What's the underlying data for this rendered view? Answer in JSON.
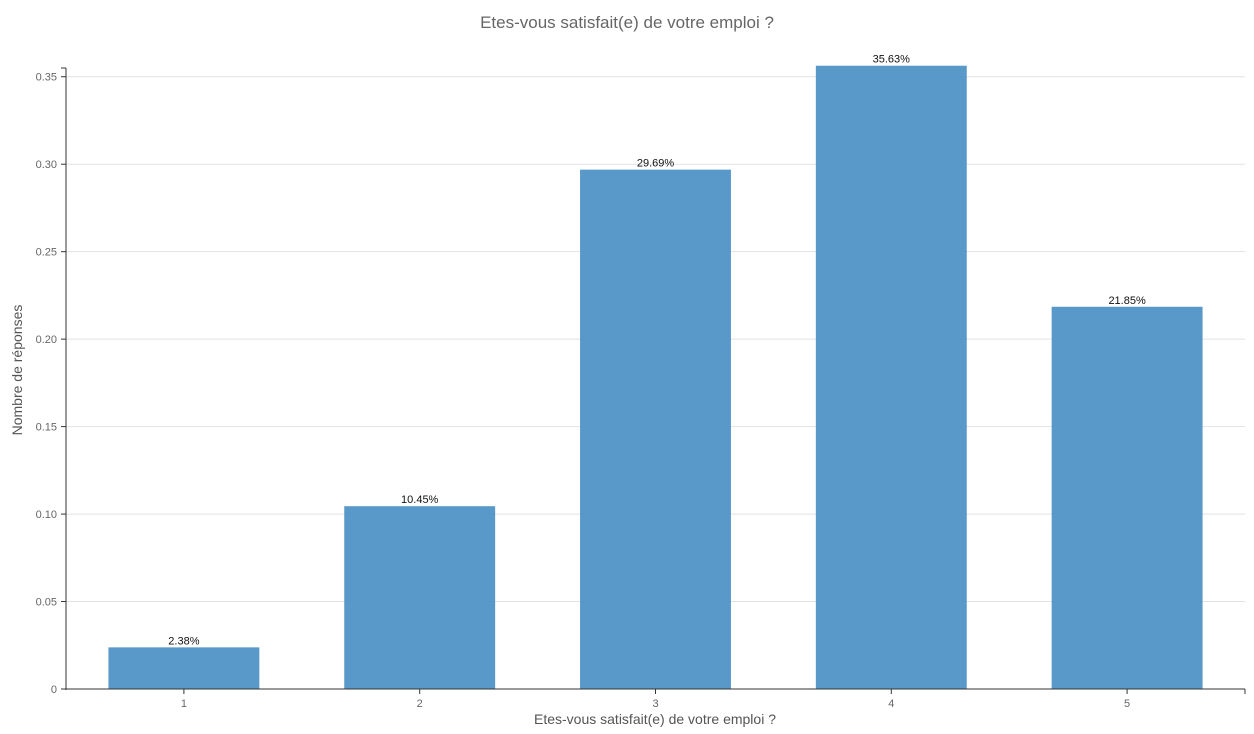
{
  "chart_data": {
    "type": "bar",
    "title": "Etes-vous satisfait(e) de votre emploi ?",
    "xlabel": "Etes-vous satisfait(e) de votre emploi ?",
    "ylabel": "Nombre de réponses",
    "categories": [
      "1",
      "2",
      "3",
      "4",
      "5"
    ],
    "values": [
      0.0238,
      0.1045,
      0.2969,
      0.3563,
      0.2185
    ],
    "data_labels": [
      "2.38%",
      "10.45%",
      "29.69%",
      "35.63%",
      "21.85%"
    ],
    "ylim": [
      0,
      0.355
    ],
    "yticks": [
      0,
      0.05,
      0.1,
      0.15,
      0.2,
      0.25,
      0.3,
      0.35
    ],
    "ytick_labels": [
      "0",
      "0.05",
      "0.10",
      "0.15",
      "0.20",
      "0.25",
      "0.30",
      "0.35"
    ],
    "grid": true,
    "legend": "none",
    "bar_color": "#4a90c4"
  }
}
